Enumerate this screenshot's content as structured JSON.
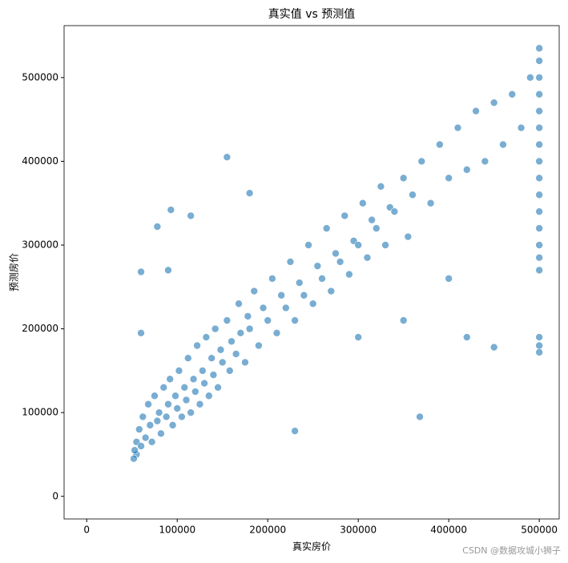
{
  "chart_data": {
    "type": "scatter",
    "title": "真实值 vs 预测值",
    "x_label": "真实房价",
    "y_label": "预测房价",
    "watermark": "CSDN @数据攻城小狮子",
    "xlim": [
      -25000,
      522000
    ],
    "ylim": [
      -27000,
      562000
    ],
    "xticks": [
      0,
      100000,
      200000,
      300000,
      400000,
      500000
    ],
    "yticks": [
      0,
      100000,
      200000,
      300000,
      400000,
      500000
    ],
    "series": [
      {
        "color": "#1f77b4",
        "x": [
          55000,
          55000,
          58000,
          60000,
          62000,
          65000,
          68000,
          70000,
          72000,
          75000,
          78000,
          80000,
          82000,
          85000,
          88000,
          90000,
          92000,
          95000,
          98000,
          100000,
          102000,
          105000,
          108000,
          110000,
          112000,
          115000,
          118000,
          120000,
          122000,
          125000,
          128000,
          130000,
          132000,
          135000,
          138000,
          140000,
          142000,
          145000,
          148000,
          150000,
          155000,
          158000,
          160000,
          165000,
          168000,
          170000,
          175000,
          178000,
          180000,
          185000,
          190000,
          195000,
          200000,
          205000,
          210000,
          215000,
          220000,
          225000,
          230000,
          235000,
          240000,
          245000,
          250000,
          255000,
          260000,
          265000,
          270000,
          275000,
          280000,
          285000,
          290000,
          295000,
          300000,
          305000,
          310000,
          315000,
          320000,
          325000,
          330000,
          335000,
          340000,
          350000,
          355000,
          360000,
          370000,
          380000,
          390000,
          400000,
          410000,
          420000,
          430000,
          440000,
          450000,
          460000,
          470000,
          480000,
          490000,
          60000,
          78000,
          93000,
          115000,
          155000,
          180000,
          368000,
          230000,
          300000,
          450000,
          420000,
          400000,
          350000,
          60000,
          90000,
          500000,
          500000,
          500000,
          500000,
          500000,
          500000,
          500000,
          500000,
          500000,
          500000,
          500000,
          500000,
          500000,
          500000,
          500000,
          500000,
          500000,
          500000,
          52000,
          53000
        ],
        "values": [
          50000,
          65000,
          80000,
          60000,
          95000,
          70000,
          110000,
          85000,
          65000,
          120000,
          90000,
          100000,
          75000,
          130000,
          95000,
          110000,
          140000,
          85000,
          120000,
          105000,
          150000,
          95000,
          130000,
          115000,
          165000,
          100000,
          140000,
          125000,
          180000,
          110000,
          150000,
          135000,
          190000,
          120000,
          165000,
          145000,
          200000,
          130000,
          175000,
          160000,
          210000,
          150000,
          185000,
          170000,
          230000,
          195000,
          160000,
          215000,
          200000,
          245000,
          180000,
          225000,
          210000,
          260000,
          195000,
          240000,
          225000,
          280000,
          210000,
          255000,
          240000,
          300000,
          230000,
          275000,
          260000,
          320000,
          245000,
          290000,
          280000,
          335000,
          265000,
          305000,
          300000,
          350000,
          285000,
          330000,
          320000,
          370000,
          300000,
          345000,
          340000,
          380000,
          310000,
          360000,
          400000,
          350000,
          420000,
          380000,
          440000,
          390000,
          460000,
          400000,
          470000,
          420000,
          480000,
          440000,
          500000,
          268000,
          322000,
          342000,
          335000,
          405000,
          362000,
          95000,
          78000,
          190000,
          178000,
          190000,
          260000,
          210000,
          195000,
          270000,
          520000,
          500000,
          480000,
          460000,
          440000,
          420000,
          400000,
          380000,
          360000,
          340000,
          320000,
          300000,
          285000,
          270000,
          190000,
          180000,
          172000,
          535000,
          45000,
          55000
        ]
      }
    ]
  }
}
